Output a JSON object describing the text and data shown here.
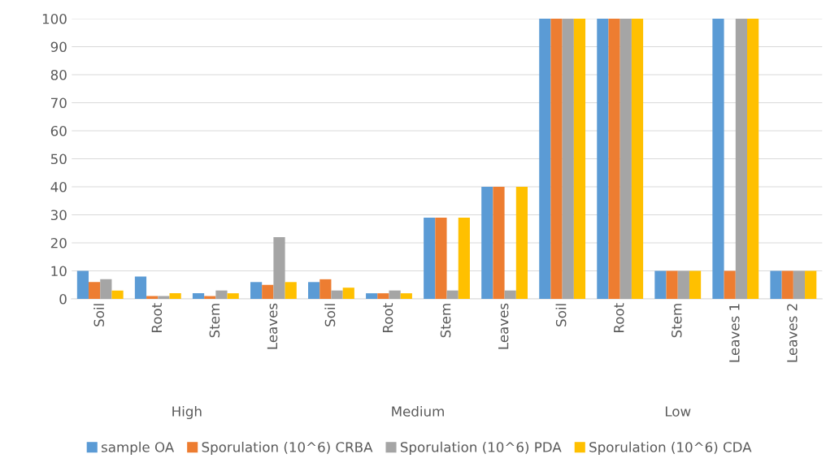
{
  "chart_data": {
    "type": "bar",
    "categories": [
      "Soil",
      "Root",
      "Stem",
      "Leaves",
      "Soil",
      "Root",
      "Stem",
      "Leaves",
      "Soil",
      "Root",
      "Stem",
      "Leaves 1",
      "Leaves 2"
    ],
    "series": [
      {
        "name": "sample OA",
        "color": "#5b9bd5",
        "values": [
          10,
          8,
          2,
          6,
          6,
          2,
          29,
          40,
          100,
          100,
          10,
          100,
          10
        ]
      },
      {
        "name": "Sporulation (10^6) CRBA",
        "color": "#ed7d31",
        "values": [
          6,
          1,
          1,
          5,
          7,
          2,
          29,
          40,
          100,
          100,
          10,
          10,
          10
        ]
      },
      {
        "name": "Sporulation (10^6) PDA",
        "color": "#a5a5a5",
        "values": [
          7,
          1,
          3,
          22,
          3,
          3,
          3,
          3,
          100,
          100,
          10,
          100,
          10
        ]
      },
      {
        "name": "Sporulation (10^6) CDA",
        "color": "#ffc000",
        "values": [
          3,
          2,
          2,
          6,
          4,
          2,
          29,
          40,
          100,
          100,
          10,
          100,
          10
        ]
      }
    ],
    "annotations": [
      "High",
      "Medium",
      "Low"
    ],
    "ylim": [
      0,
      100
    ],
    "yticks": [
      0,
      10,
      20,
      30,
      40,
      50,
      60,
      70,
      80,
      90,
      100
    ],
    "grid": "y",
    "legend": "bottom"
  }
}
